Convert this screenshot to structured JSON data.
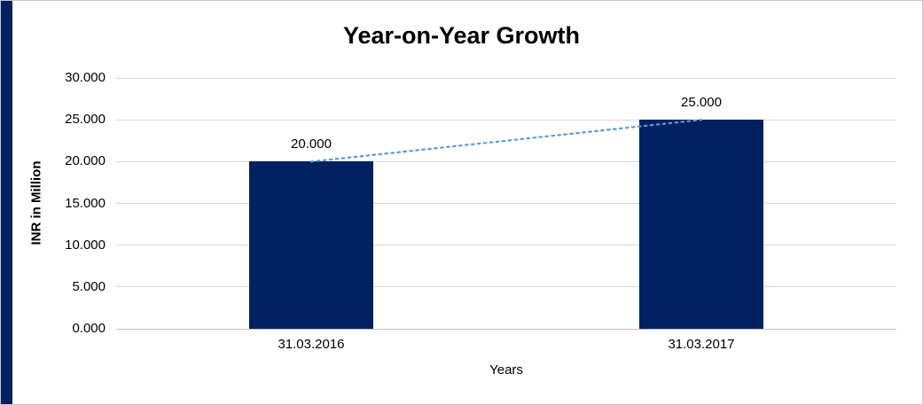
{
  "figure": {
    "accent_stripe_color": "#002060"
  },
  "chart_data": {
    "type": "bar",
    "title": "Year-on-Year Growth",
    "xlabel": "Years",
    "ylabel": "INR in Million",
    "categories": [
      "31.03.2016",
      "31.03.2017"
    ],
    "values": [
      20,
      25
    ],
    "data_labels": [
      "20.000",
      "25.000"
    ],
    "yticks": [
      "0.000",
      "5.000",
      "10.000",
      "15.000",
      "20.000",
      "25.000",
      "30.000"
    ],
    "ylim": [
      0,
      30
    ],
    "grid": true,
    "legend": false,
    "bar_color": "#002060",
    "gridline_color": "#d9d9d9",
    "axis_line_color": "#bfbfbf",
    "trendline": {
      "style": "dotted",
      "color": "#5b9bd5"
    }
  }
}
